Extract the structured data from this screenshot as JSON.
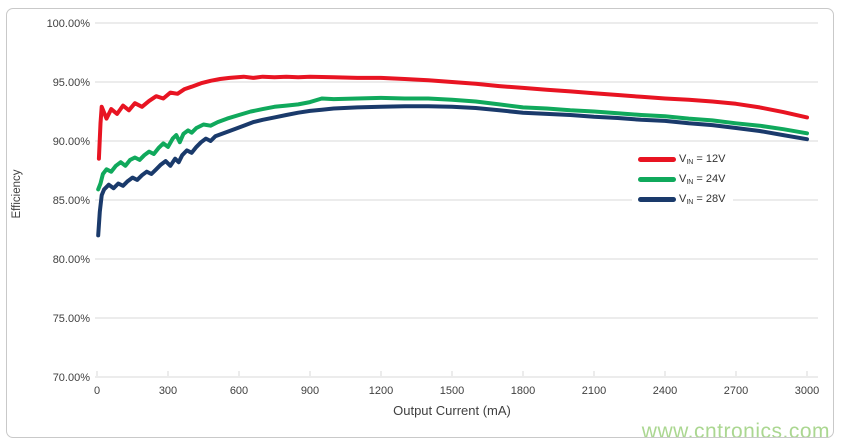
{
  "colors": {
    "gridline": "#d9d9d9",
    "axis_text": "#404040",
    "frame_border": "#c9c9c9",
    "background": "#ffffff"
  },
  "watermark": {
    "text": "www.cntronics.com",
    "color": "#abd791"
  },
  "chart_data": {
    "type": "line",
    "title": "",
    "xlabel": "Output Current (mA)",
    "ylabel": "Efficiency",
    "xlim": [
      0,
      3000
    ],
    "ylim": [
      70,
      100
    ],
    "grid": "horizontal",
    "legend_position": "middle-right",
    "x_ticks": [
      {
        "value": 0,
        "label": "0"
      },
      {
        "value": 300,
        "label": "300"
      },
      {
        "value": 600,
        "label": "600"
      },
      {
        "value": 900,
        "label": "900"
      },
      {
        "value": 1200,
        "label": "1200"
      },
      {
        "value": 1500,
        "label": "1500"
      },
      {
        "value": 1800,
        "label": "1800"
      },
      {
        "value": 2100,
        "label": "2100"
      },
      {
        "value": 2400,
        "label": "2400"
      },
      {
        "value": 2700,
        "label": "2700"
      },
      {
        "value": 3000,
        "label": "3000"
      }
    ],
    "y_ticks": [
      {
        "value": 100,
        "label": "100.00%"
      },
      {
        "value": 95,
        "label": "95.00%"
      },
      {
        "value": 90,
        "label": "90.00%"
      },
      {
        "value": 85,
        "label": "85.00%"
      },
      {
        "value": 80,
        "label": "80.00%"
      },
      {
        "value": 75,
        "label": "75.00%"
      },
      {
        "value": 70,
        "label": "70.00%"
      }
    ],
    "series": [
      {
        "name": "VIN = 12V",
        "legend": {
          "prefix": "V",
          "subscript": "IN",
          "suffix": " = 12V"
        },
        "color": "#e81422",
        "points": [
          [
            8,
            88.5
          ],
          [
            15,
            91.5
          ],
          [
            20,
            92.9
          ],
          [
            40,
            91.9
          ],
          [
            60,
            92.7
          ],
          [
            85,
            92.3
          ],
          [
            110,
            93.0
          ],
          [
            135,
            92.6
          ],
          [
            160,
            93.2
          ],
          [
            190,
            92.9
          ],
          [
            220,
            93.4
          ],
          [
            250,
            93.8
          ],
          [
            280,
            93.6
          ],
          [
            310,
            94.1
          ],
          [
            340,
            94.0
          ],
          [
            370,
            94.4
          ],
          [
            400,
            94.6
          ],
          [
            440,
            94.9
          ],
          [
            480,
            95.1
          ],
          [
            520,
            95.25
          ],
          [
            560,
            95.35
          ],
          [
            620,
            95.45
          ],
          [
            660,
            95.35
          ],
          [
            700,
            95.45
          ],
          [
            750,
            95.4
          ],
          [
            800,
            95.45
          ],
          [
            850,
            95.4
          ],
          [
            900,
            95.45
          ],
          [
            1000,
            95.4
          ],
          [
            1100,
            95.35
          ],
          [
            1200,
            95.35
          ],
          [
            1300,
            95.25
          ],
          [
            1400,
            95.15
          ],
          [
            1500,
            95.0
          ],
          [
            1600,
            94.85
          ],
          [
            1700,
            94.65
          ],
          [
            1800,
            94.5
          ],
          [
            1900,
            94.35
          ],
          [
            2000,
            94.2
          ],
          [
            2100,
            94.05
          ],
          [
            2200,
            93.9
          ],
          [
            2300,
            93.75
          ],
          [
            2400,
            93.6
          ],
          [
            2500,
            93.5
          ],
          [
            2600,
            93.35
          ],
          [
            2700,
            93.15
          ],
          [
            2800,
            92.85
          ],
          [
            2900,
            92.45
          ],
          [
            3000,
            92.0
          ]
        ]
      },
      {
        "name": "VIN = 24V",
        "legend": {
          "prefix": "V",
          "subscript": "IN",
          "suffix": " = 24V"
        },
        "color": "#10a95c",
        "points": [
          [
            5,
            85.9
          ],
          [
            15,
            86.4
          ],
          [
            25,
            87.2
          ],
          [
            40,
            87.6
          ],
          [
            60,
            87.4
          ],
          [
            80,
            87.9
          ],
          [
            100,
            88.2
          ],
          [
            120,
            87.9
          ],
          [
            140,
            88.4
          ],
          [
            160,
            88.6
          ],
          [
            180,
            88.4
          ],
          [
            200,
            88.8
          ],
          [
            220,
            89.1
          ],
          [
            240,
            88.9
          ],
          [
            260,
            89.4
          ],
          [
            280,
            89.8
          ],
          [
            300,
            89.5
          ],
          [
            320,
            90.2
          ],
          [
            335,
            90.5
          ],
          [
            350,
            89.9
          ],
          [
            365,
            90.6
          ],
          [
            385,
            90.9
          ],
          [
            400,
            90.7
          ],
          [
            420,
            91.1
          ],
          [
            450,
            91.4
          ],
          [
            480,
            91.3
          ],
          [
            510,
            91.6
          ],
          [
            550,
            91.9
          ],
          [
            600,
            92.2
          ],
          [
            650,
            92.5
          ],
          [
            700,
            92.7
          ],
          [
            750,
            92.9
          ],
          [
            800,
            93.0
          ],
          [
            850,
            93.1
          ],
          [
            900,
            93.3
          ],
          [
            950,
            93.6
          ],
          [
            1000,
            93.55
          ],
          [
            1100,
            93.6
          ],
          [
            1200,
            93.65
          ],
          [
            1300,
            93.6
          ],
          [
            1400,
            93.6
          ],
          [
            1500,
            93.5
          ],
          [
            1600,
            93.35
          ],
          [
            1700,
            93.1
          ],
          [
            1800,
            92.85
          ],
          [
            1900,
            92.75
          ],
          [
            2000,
            92.6
          ],
          [
            2100,
            92.5
          ],
          [
            2200,
            92.35
          ],
          [
            2300,
            92.2
          ],
          [
            2400,
            92.1
          ],
          [
            2500,
            91.9
          ],
          [
            2600,
            91.75
          ],
          [
            2700,
            91.5
          ],
          [
            2800,
            91.3
          ],
          [
            2900,
            91.0
          ],
          [
            3000,
            90.65
          ]
        ]
      },
      {
        "name": "VIN = 28V",
        "legend": {
          "prefix": "V",
          "subscript": "IN",
          "suffix": " = 28V"
        },
        "color": "#1a3a6b",
        "points": [
          [
            5,
            82.0
          ],
          [
            12,
            84.0
          ],
          [
            20,
            85.4
          ],
          [
            30,
            85.9
          ],
          [
            50,
            86.3
          ],
          [
            70,
            86.0
          ],
          [
            90,
            86.4
          ],
          [
            110,
            86.2
          ],
          [
            130,
            86.6
          ],
          [
            150,
            86.9
          ],
          [
            170,
            86.7
          ],
          [
            190,
            87.1
          ],
          [
            210,
            87.4
          ],
          [
            230,
            87.2
          ],
          [
            250,
            87.6
          ],
          [
            270,
            88.0
          ],
          [
            290,
            88.3
          ],
          [
            310,
            87.9
          ],
          [
            330,
            88.5
          ],
          [
            345,
            88.2
          ],
          [
            360,
            88.8
          ],
          [
            380,
            89.2
          ],
          [
            400,
            89.0
          ],
          [
            420,
            89.5
          ],
          [
            440,
            89.9
          ],
          [
            460,
            90.2
          ],
          [
            480,
            90.0
          ],
          [
            500,
            90.4
          ],
          [
            540,
            90.7
          ],
          [
            580,
            91.0
          ],
          [
            620,
            91.3
          ],
          [
            660,
            91.6
          ],
          [
            700,
            91.8
          ],
          [
            750,
            92.0
          ],
          [
            800,
            92.2
          ],
          [
            850,
            92.4
          ],
          [
            900,
            92.55
          ],
          [
            950,
            92.65
          ],
          [
            1000,
            92.75
          ],
          [
            1100,
            92.85
          ],
          [
            1200,
            92.9
          ],
          [
            1300,
            92.95
          ],
          [
            1400,
            92.95
          ],
          [
            1500,
            92.9
          ],
          [
            1600,
            92.8
          ],
          [
            1700,
            92.6
          ],
          [
            1800,
            92.4
          ],
          [
            1900,
            92.3
          ],
          [
            2000,
            92.2
          ],
          [
            2100,
            92.05
          ],
          [
            2200,
            91.95
          ],
          [
            2300,
            91.8
          ],
          [
            2400,
            91.7
          ],
          [
            2500,
            91.5
          ],
          [
            2600,
            91.35
          ],
          [
            2700,
            91.1
          ],
          [
            2800,
            90.85
          ],
          [
            2900,
            90.5
          ],
          [
            3000,
            90.15
          ]
        ]
      }
    ]
  }
}
